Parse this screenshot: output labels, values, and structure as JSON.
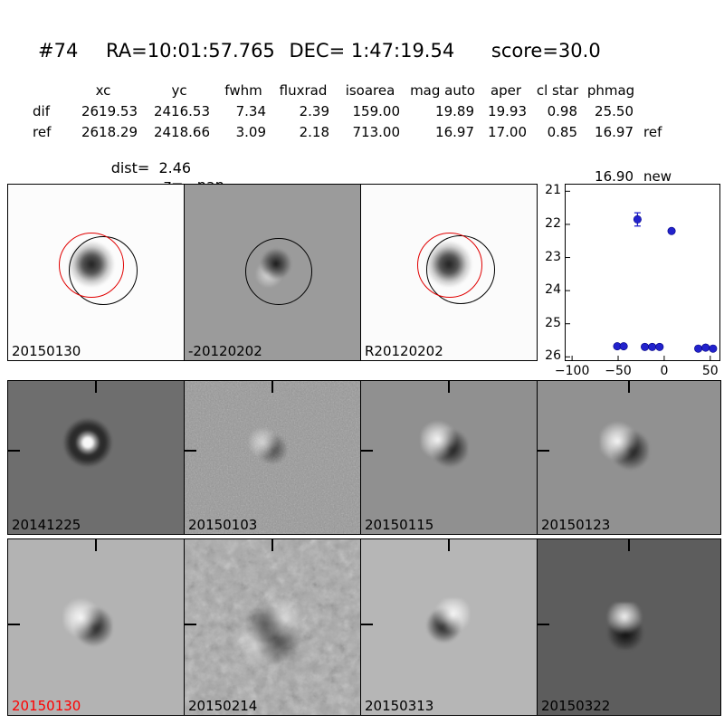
{
  "header": {
    "id": "#74",
    "ra": "RA=10:01:57.765",
    "dec": "DEC= 1:47:19.54",
    "score": "score=30.0"
  },
  "table": {
    "columns": [
      "xc",
      "yc",
      "fwhm",
      "fluxrad",
      "isoarea",
      "mag auto",
      "aper",
      "cl star",
      "phmag"
    ],
    "rows": [
      {
        "label": "dif",
        "xc": "2619.53",
        "yc": "2416.53",
        "fwhm": "7.34",
        "fluxrad": "2.39",
        "isoarea": "159.00",
        "mag_auto": "19.89",
        "aper": "19.93",
        "cl_star": "0.98",
        "phmag": "25.50",
        "phmag_note": ""
      },
      {
        "label": "ref",
        "xc": "2618.29",
        "yc": "2418.66",
        "fwhm": "3.09",
        "fluxrad": "2.18",
        "isoarea": "713.00",
        "mag_auto": "16.97",
        "aper": "17.00",
        "cl_star": "0.85",
        "phmag": "16.97",
        "phmag_note": "ref"
      }
    ],
    "extra_phmag": {
      "value": "16.90",
      "note": "new"
    },
    "dist": "dist=  2.46",
    "z": "z=   nan"
  },
  "panels": [
    {
      "label": "20150130"
    },
    {
      "label": "-20120202"
    },
    {
      "label": "R20120202"
    },
    {
      "label": ""
    },
    {
      "label": "20141225"
    },
    {
      "label": "20150103"
    },
    {
      "label": "20150115"
    },
    {
      "label": "20150123"
    },
    {
      "label": "20150130",
      "highlight": true
    },
    {
      "label": "20150214"
    },
    {
      "label": "20150313"
    },
    {
      "label": "20150322"
    }
  ],
  "colors": {
    "highlight_label": "#ff0000",
    "marker": "#2222cc",
    "ref_circle": "#e00000",
    "aperture_circle": "#000000"
  },
  "chart_data": {
    "type": "scatter",
    "title": "",
    "xlabel": "",
    "ylabel": "",
    "legend": null,
    "grid": false,
    "y_axis_inverted": true,
    "xlim": [
      -107,
      60
    ],
    "ylim": [
      26.1,
      20.8
    ],
    "marker_color": "#2222cc",
    "xticks": [
      {
        "value": -100,
        "label": "−100"
      },
      {
        "value": -50,
        "label": "−50"
      },
      {
        "value": 0,
        "label": "0"
      },
      {
        "value": 50,
        "label": "50"
      }
    ],
    "yticks": [
      {
        "value": 21,
        "label": "21"
      },
      {
        "value": 22,
        "label": "22"
      },
      {
        "value": 23,
        "label": "23"
      },
      {
        "value": 24,
        "label": "24"
      },
      {
        "value": 25,
        "label": "25"
      },
      {
        "value": 26,
        "label": "26"
      }
    ],
    "points": [
      {
        "x": -29,
        "mag": 21.85,
        "err": 0.2
      },
      {
        "x": 8,
        "mag": 22.2
      },
      {
        "x": -51,
        "mag": 25.68
      },
      {
        "x": -44,
        "mag": 25.68
      },
      {
        "x": -21,
        "mag": 25.7
      },
      {
        "x": -13,
        "mag": 25.7
      },
      {
        "x": -5,
        "mag": 25.7
      },
      {
        "x": 37,
        "mag": 25.75
      },
      {
        "x": 45,
        "mag": 25.72
      },
      {
        "x": 53,
        "mag": 25.75
      }
    ]
  }
}
